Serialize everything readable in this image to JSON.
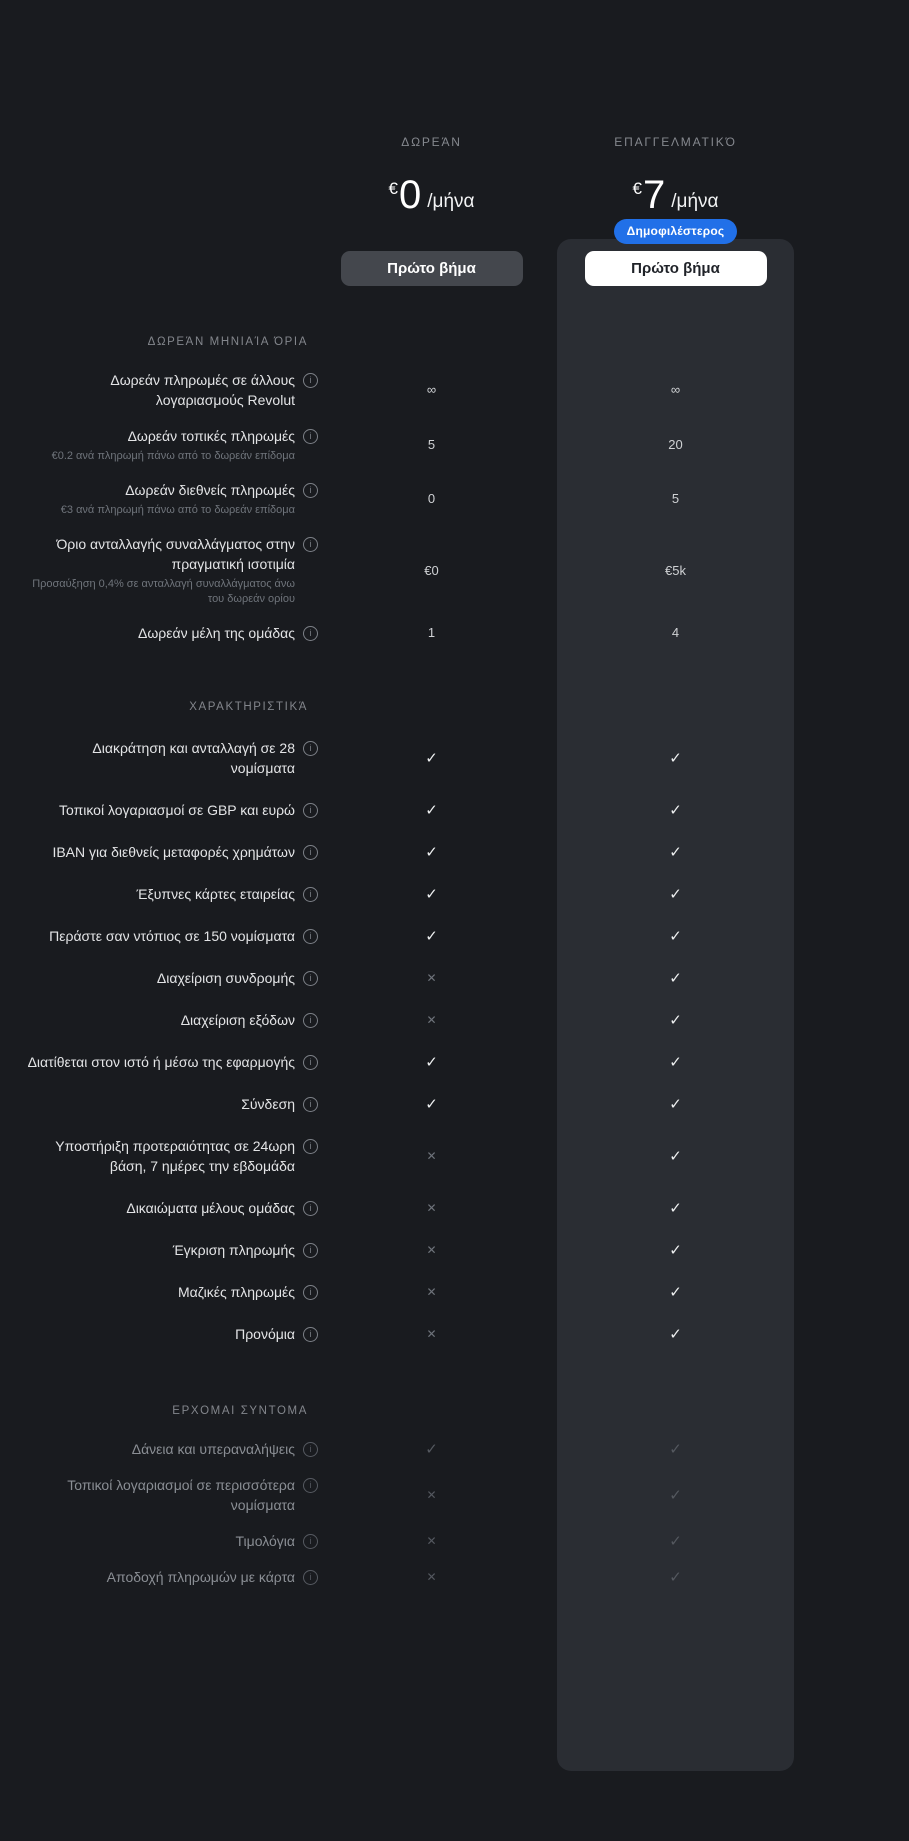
{
  "theme": {
    "page_bg": "#191B1F",
    "card_bg": "#2A2D33",
    "badge_bg": "#2170E8",
    "free_button_bg": "#44474D",
    "pro_button_bg": "#FFFFFF",
    "check_color": "#EDEFF0",
    "cross_color": "#6E737A"
  },
  "icons": {
    "check": "✓",
    "cross": "✕",
    "info": "i"
  },
  "plans": [
    {
      "id": "free",
      "name": "ΔΩΡΕΆΝ",
      "currency": "€",
      "amount": "0",
      "period": "/μήνα",
      "cta": "Πρώτο βήμα",
      "highlighted": false
    },
    {
      "id": "business",
      "name": "ΕΠΑΓΓΕΛΜΑΤΙΚΌ",
      "currency": "€",
      "amount": "7",
      "period": "/μήνα",
      "cta": "Πρώτο βήμα",
      "highlighted": true,
      "badge": "Δημοφιλέστερος"
    }
  ],
  "sections": [
    {
      "title": "ΔΩΡΕΆΝ ΜΗΝΙΑΊΑ ΌΡΙΑ",
      "dimmed": false,
      "rows": [
        {
          "label": "Δωρεάν πληρωμές σε άλλους λογαριασμούς Revolut",
          "info": true,
          "values": [
            "∞",
            "∞"
          ]
        },
        {
          "label": "Δωρεάν τοπικές πληρωμές",
          "sub": "€0.2 ανά πληρωμή πάνω από το δωρεάν επίδομα",
          "info": true,
          "values": [
            "5",
            "20"
          ]
        },
        {
          "label": "Δωρεάν διεθνείς πληρωμές",
          "sub": "€3 ανά πληρωμή πάνω από το δωρεάν επίδομα",
          "info": true,
          "values": [
            "0",
            "5"
          ]
        },
        {
          "label": "Όριο ανταλλαγής συναλλάγματος στην πραγματική ισοτιμία",
          "sub": "Προσαύξηση 0,4% σε ανταλλαγή συναλλάγματος άνω του δωρεάν ορίου",
          "info": true,
          "values": [
            "€0",
            "€5k"
          ]
        },
        {
          "label": "Δωρεάν μέλη της ομάδας",
          "info": true,
          "values": [
            "1",
            "4"
          ]
        }
      ]
    },
    {
      "title": "ΧΑΡΑΚΤΗΡΙΣΤΙΚΆ",
      "dimmed": false,
      "rows": [
        {
          "label": "Διακράτηση και ανταλλαγή σε 28 νομίσματα",
          "info": true,
          "values": [
            "check",
            "check"
          ]
        },
        {
          "label": "Τοπικοί λογαριασμοί σε GBP και ευρώ",
          "info": true,
          "values": [
            "check",
            "check"
          ]
        },
        {
          "label": "IBAN για διεθνείς μεταφορές χρημάτων",
          "info": true,
          "values": [
            "check",
            "check"
          ]
        },
        {
          "label": "Έξυπνες κάρτες εταιρείας",
          "info": true,
          "values": [
            "check",
            "check"
          ]
        },
        {
          "label": "Περάστε σαν ντόπιος σε 150 νομίσματα",
          "info": true,
          "values": [
            "check",
            "check"
          ]
        },
        {
          "label": "Διαχείριση συνδρομής",
          "info": true,
          "values": [
            "cross",
            "check"
          ]
        },
        {
          "label": "Διαχείριση εξόδων",
          "info": true,
          "values": [
            "cross",
            "check"
          ]
        },
        {
          "label": "Διατίθεται στον ιστό ή μέσω της εφαρμογής",
          "info": true,
          "values": [
            "check",
            "check"
          ]
        },
        {
          "label": "Σύνδεση",
          "info": true,
          "values": [
            "check",
            "check"
          ]
        },
        {
          "label": "Υποστήριξη προτεραιότητας σε 24ωρη βάση, 7 ημέρες την εβδομάδα",
          "info": true,
          "values": [
            "cross",
            "check"
          ]
        },
        {
          "label": "Δικαιώματα μέλους ομάδας",
          "info": true,
          "values": [
            "cross",
            "check"
          ]
        },
        {
          "label": "Έγκριση πληρωμής",
          "info": true,
          "values": [
            "cross",
            "check"
          ]
        },
        {
          "label": "Μαζικές πληρωμές",
          "info": true,
          "values": [
            "cross",
            "check"
          ]
        },
        {
          "label": "Προνόμια",
          "info": true,
          "values": [
            "cross",
            "check"
          ]
        }
      ]
    },
    {
      "title": "ΕΡΧΟΜΑΙ ΣΥΝΤΟΜΑ",
      "dimmed": true,
      "rows": [
        {
          "label": "Δάνεια και υπεραναλήψεις",
          "info": true,
          "values": [
            "check",
            "check"
          ]
        },
        {
          "label": "Τοπικοί λογαριασμοί σε περισσότερα νομίσματα",
          "info": true,
          "values": [
            "cross",
            "check"
          ]
        },
        {
          "label": "Τιμολόγια",
          "info": true,
          "values": [
            "cross",
            "check"
          ]
        },
        {
          "label": "Αποδοχή πληρωμών με κάρτα",
          "info": true,
          "values": [
            "cross",
            "check"
          ]
        }
      ]
    }
  ]
}
